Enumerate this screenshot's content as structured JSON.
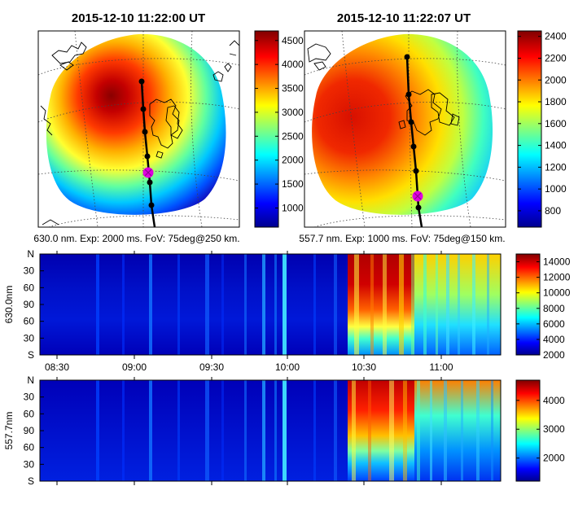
{
  "colors": {
    "jet": [
      "#00008f",
      "#0000ff",
      "#00ffff",
      "#ffff00",
      "#ff0000",
      "#800000"
    ],
    "trajectory": "#000000",
    "marker": "#e000e0",
    "grid": "#333333",
    "coast": "#000000"
  },
  "chart_data": [
    {
      "type": "heatmap",
      "title": "2015-12-10 11:22:00 UT",
      "caption": "630.0 nm. Exp: 2000 ms. FoV: 75deg@250 km.",
      "colorbar": {
        "range": [
          600,
          4700
        ],
        "ticks": [
          "1000",
          "1500",
          "2000",
          "2500",
          "3000",
          "3500",
          "4000",
          "4500"
        ]
      },
      "trajectory_markers": 6,
      "marker_position": 4
    },
    {
      "type": "heatmap",
      "title": "2015-12-10 11:22:07 UT",
      "caption": "557.7 nm. Exp: 1000 ms. FoV: 75deg@150 km.",
      "colorbar": {
        "range": [
          650,
          2450
        ],
        "ticks": [
          "800",
          "1000",
          "1200",
          "1400",
          "1600",
          "1800",
          "2000",
          "2200",
          "2400"
        ]
      },
      "trajectory_markers": 6,
      "marker_position": 5
    },
    {
      "type": "heatmap",
      "ylabel": "630.0nm",
      "yticks": [
        "N",
        "30",
        "60",
        "90",
        "60",
        "30",
        "S"
      ],
      "xticks": [
        "08:30",
        "09:00",
        "09:30",
        "10:00",
        "10:30",
        "11:00"
      ],
      "colorbar": {
        "range": [
          2000,
          15000
        ],
        "ticks": [
          "2000",
          "4000",
          "6000",
          "8000",
          "10000",
          "12000",
          "14000"
        ]
      }
    },
    {
      "type": "heatmap",
      "ylabel": "557.7nm",
      "yticks": [
        "N",
        "30",
        "60",
        "90",
        "60",
        "30",
        "S"
      ],
      "colorbar": {
        "range": [
          1200,
          4700
        ],
        "ticks": [
          "2000",
          "3000",
          "4000"
        ]
      }
    }
  ]
}
